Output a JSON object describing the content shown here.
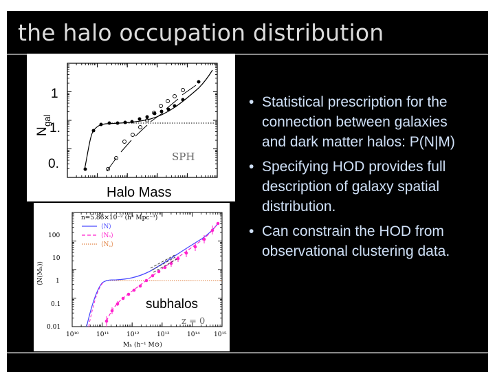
{
  "slide": {
    "title": "the halo occupation distribution",
    "bullets": [
      "Statistical prescription for the connection between galaxies and dark matter halos: P(N|M)",
      "Specifying HOD provides full description of galaxy spatial distribution.",
      "Can constrain the HOD from observational clustering data."
    ],
    "bullet_glyph": "•"
  },
  "top_plot": {
    "ylabel_main": "N",
    "ylabel_sub": "gal",
    "ytick_labels": [
      "1",
      "1.",
      "0."
    ],
    "xlabel": "Halo Mass",
    "annotation": "SPH"
  },
  "bottom_plot": {
    "header": "n=5.86×10⁻² (h³ Mpc⁻³)",
    "legend": [
      "⟨N⟩",
      "⟨Nₛ⟩",
      "⟨N꜀⟩"
    ],
    "ylabel": "⟨N(Mₕ)⟩",
    "xlabel": "Mₕ  (h⁻¹ M⊙)",
    "ytick_labels": [
      "100",
      "10",
      "1",
      "0.1",
      "0.01"
    ],
    "xtick_labels": [
      "10¹⁰",
      "10¹¹",
      "10¹²",
      "10¹³",
      "10¹⁴",
      "10¹⁵"
    ],
    "subhalos_label": "subhalos",
    "redshift_label": "z = 0"
  },
  "colors": {
    "slide_bg": "#000000",
    "title": "#dcdcdc",
    "bullets": "#cfe0f7",
    "rule": "#8a8a8a",
    "total": "#4a4aff",
    "satellite": "#ff22cc",
    "central": "#e08040"
  }
}
